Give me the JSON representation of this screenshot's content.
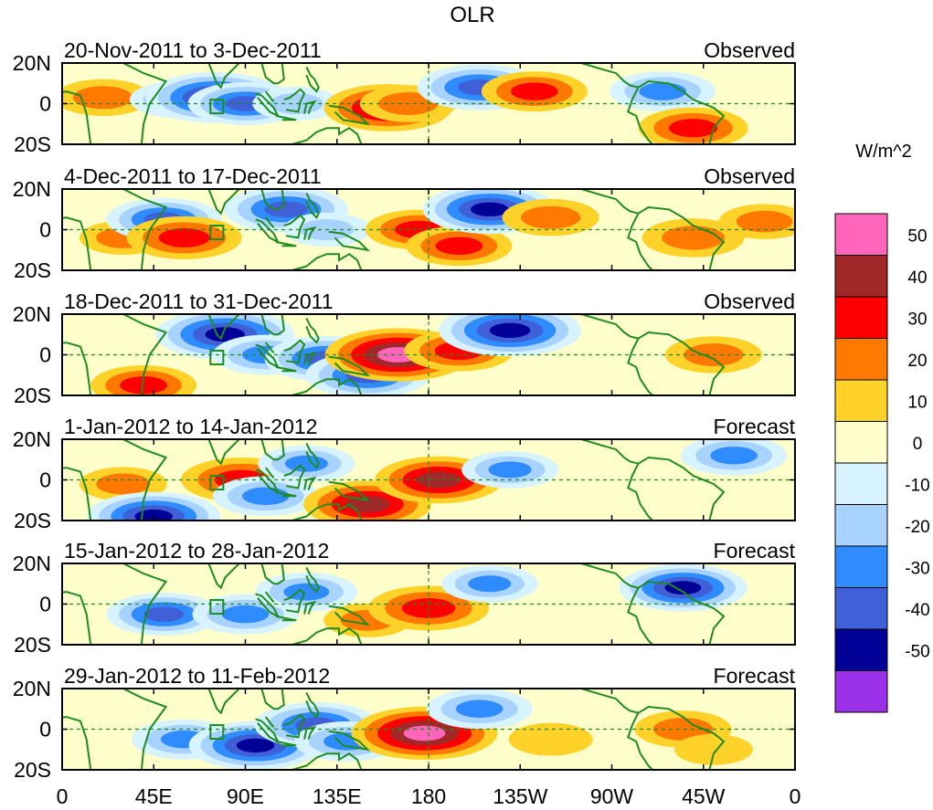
{
  "chart_data": {
    "type": "heatmap",
    "title": "OLR",
    "units": "W/m^2",
    "x_ticks": [
      "0",
      "45E",
      "90E",
      "135E",
      "180",
      "135W",
      "90W",
      "45W",
      "0"
    ],
    "y_ticks": [
      "20N",
      "0",
      "20S"
    ],
    "lon_range": [
      0,
      360
    ],
    "lat_range": [
      -20,
      20
    ],
    "colorbar": {
      "levels": [
        50,
        40,
        30,
        20,
        10,
        0,
        -10,
        -20,
        -30,
        -40,
        -50
      ],
      "colors": [
        "#ff66bb",
        "#a02828",
        "#ff0000",
        "#ff7800",
        "#ffd22a",
        "#ffffcc",
        "#d6f3ff",
        "#a8d2ff",
        "#2f8cff",
        "#4060d8",
        "#000096",
        "#9a30e8"
      ]
    },
    "land_color": "#1e8c1e",
    "panels": [
      {
        "label": "20-Nov-2011 to 3-Dec-2011",
        "status": "Observed",
        "anomalies": [
          {
            "lon": 20,
            "lat": 3,
            "value": 25
          },
          {
            "lon": 57,
            "lat": 2,
            "value": -25
          },
          {
            "lon": 75,
            "lat": 3,
            "value": -48
          },
          {
            "lon": 90,
            "lat": 0,
            "value": -35
          },
          {
            "lon": 115,
            "lat": 0,
            "value": -20
          },
          {
            "lon": 160,
            "lat": -2,
            "value": 42
          },
          {
            "lon": 170,
            "lat": 0,
            "value": 25
          },
          {
            "lon": 205,
            "lat": 8,
            "value": -40
          },
          {
            "lon": 232,
            "lat": 6,
            "value": 30
          },
          {
            "lon": 295,
            "lat": 6,
            "value": -30
          },
          {
            "lon": 310,
            "lat": -12,
            "value": 32
          }
        ]
      },
      {
        "label": "4-Dec-2011 to 17-Dec-2011",
        "status": "Observed",
        "anomalies": [
          {
            "lon": 30,
            "lat": -4,
            "value": 20
          },
          {
            "lon": 50,
            "lat": 5,
            "value": -35
          },
          {
            "lon": 60,
            "lat": -4,
            "value": 35
          },
          {
            "lon": 110,
            "lat": 10,
            "value": -40
          },
          {
            "lon": 130,
            "lat": 0,
            "value": -20
          },
          {
            "lon": 175,
            "lat": 0,
            "value": 30
          },
          {
            "lon": 195,
            "lat": -8,
            "value": 30
          },
          {
            "lon": 210,
            "lat": 10,
            "value": -45
          },
          {
            "lon": 240,
            "lat": 6,
            "value": 25
          },
          {
            "lon": 310,
            "lat": -4,
            "value": 28
          },
          {
            "lon": 345,
            "lat": 4,
            "value": 22
          }
        ]
      },
      {
        "label": "18-Dec-2011 to 31-Dec-2011",
        "status": "Observed",
        "anomalies": [
          {
            "lon": 40,
            "lat": -15,
            "value": 30
          },
          {
            "lon": 80,
            "lat": 10,
            "value": -48
          },
          {
            "lon": 100,
            "lat": 0,
            "value": -30
          },
          {
            "lon": 130,
            "lat": -2,
            "value": -40
          },
          {
            "lon": 150,
            "lat": -10,
            "value": -40
          },
          {
            "lon": 165,
            "lat": 0,
            "value": 52
          },
          {
            "lon": 195,
            "lat": 2,
            "value": 32
          },
          {
            "lon": 220,
            "lat": 12,
            "value": -50
          },
          {
            "lon": 320,
            "lat": 0,
            "value": 25
          }
        ]
      },
      {
        "label": "1-Jan-2012 to 14-Jan-2012",
        "status": "Forecast",
        "anomalies": [
          {
            "lon": 30,
            "lat": -2,
            "value": 20
          },
          {
            "lon": 45,
            "lat": -18,
            "value": -45
          },
          {
            "lon": 88,
            "lat": 0,
            "value": 38
          },
          {
            "lon": 100,
            "lat": -8,
            "value": -30
          },
          {
            "lon": 120,
            "lat": 8,
            "value": -25
          },
          {
            "lon": 150,
            "lat": -12,
            "value": 42
          },
          {
            "lon": 185,
            "lat": 0,
            "value": 42
          },
          {
            "lon": 220,
            "lat": 5,
            "value": -25
          },
          {
            "lon": 330,
            "lat": 12,
            "value": -30
          }
        ]
      },
      {
        "label": "15-Jan-2012 to 28-Jan-2012",
        "status": "Forecast",
        "anomalies": [
          {
            "lon": 50,
            "lat": -5,
            "value": -35
          },
          {
            "lon": 90,
            "lat": -5,
            "value": -30
          },
          {
            "lon": 120,
            "lat": 6,
            "value": -28
          },
          {
            "lon": 150,
            "lat": -8,
            "value": 20
          },
          {
            "lon": 180,
            "lat": -2,
            "value": 38
          },
          {
            "lon": 210,
            "lat": 10,
            "value": -25
          },
          {
            "lon": 305,
            "lat": 8,
            "value": -42
          }
        ]
      },
      {
        "label": "29-Jan-2012 to 11-Feb-2012",
        "status": "Forecast",
        "anomalies": [
          {
            "lon": 60,
            "lat": -5,
            "value": -30
          },
          {
            "lon": 95,
            "lat": -8,
            "value": -45
          },
          {
            "lon": 125,
            "lat": 2,
            "value": -40
          },
          {
            "lon": 140,
            "lat": -6,
            "value": -30
          },
          {
            "lon": 178,
            "lat": -2,
            "value": 52
          },
          {
            "lon": 205,
            "lat": 10,
            "value": -30
          },
          {
            "lon": 240,
            "lat": -5,
            "value": 18
          },
          {
            "lon": 305,
            "lat": 0,
            "value": 25
          },
          {
            "lon": 320,
            "lat": -10,
            "value": 15
          }
        ]
      }
    ]
  }
}
